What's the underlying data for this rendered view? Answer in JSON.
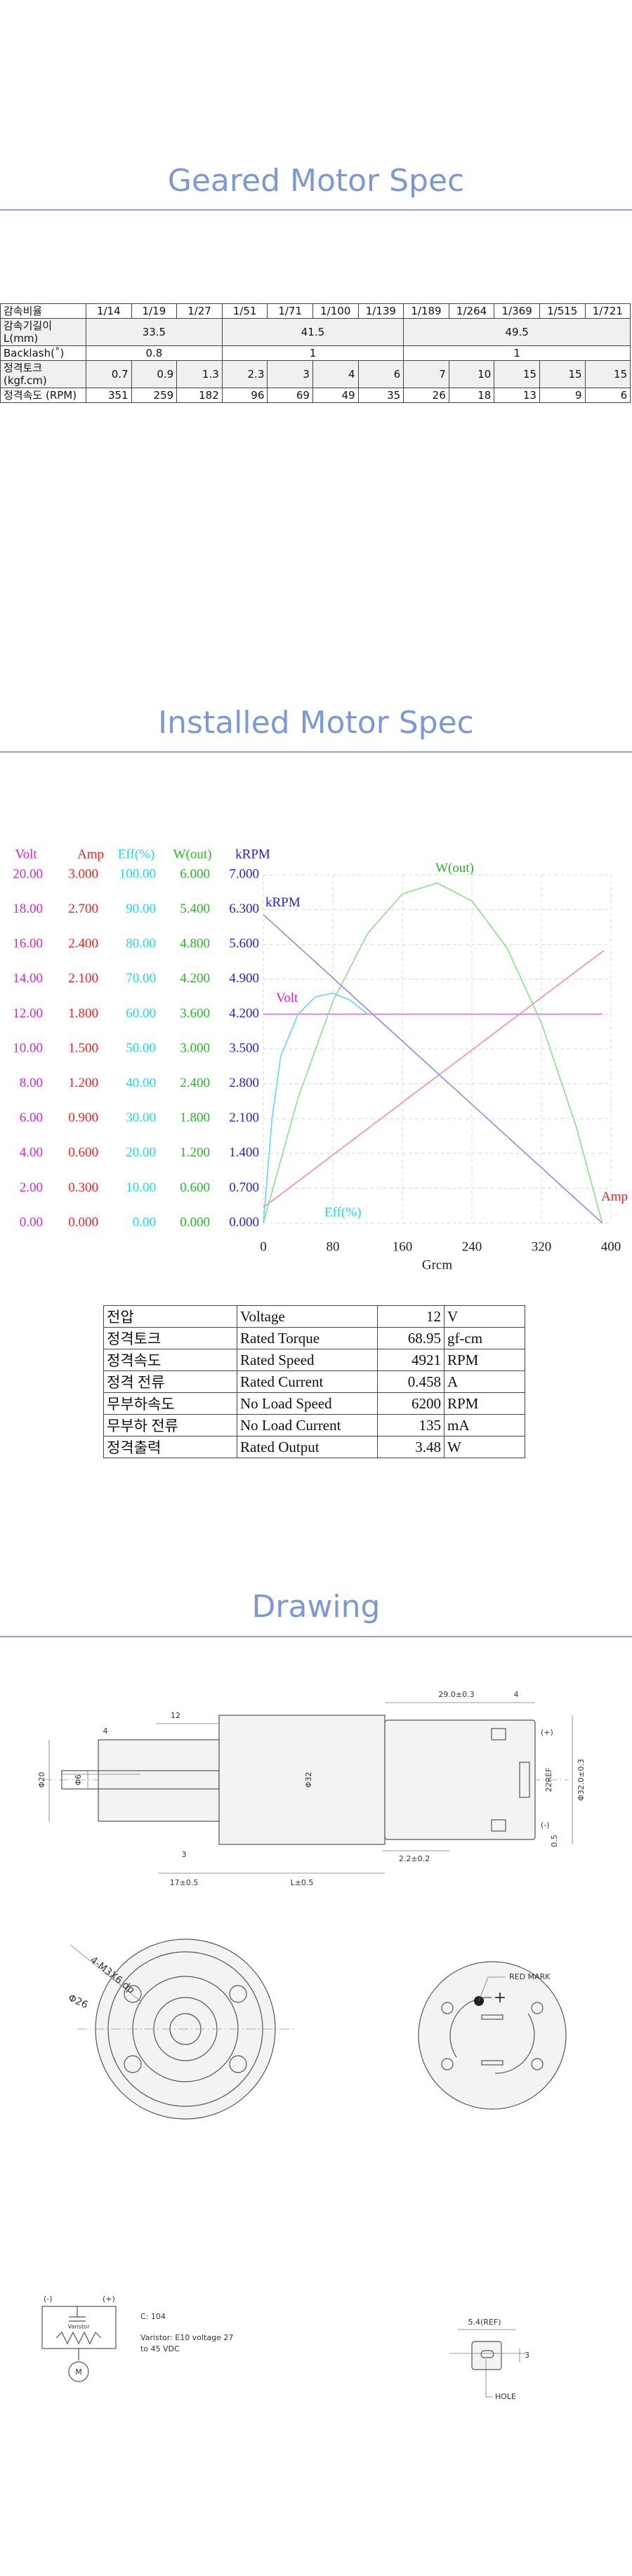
{
  "sections": {
    "geared_title": "Geared Motor Spec",
    "installed_title": "Installed Motor Spec",
    "drawing_title": "Drawing"
  },
  "gear_table": {
    "header_label": "감속비율",
    "ratios": [
      "1/14",
      "1/19",
      "1/27",
      "1/51",
      "1/71",
      "1/100",
      "1/139",
      "1/189",
      "1/264",
      "1/369",
      "1/515",
      "1/721"
    ],
    "rows": [
      {
        "label": "감속기길이 L(mm)",
        "values": [
          33.5,
          41.5,
          49.5
        ]
      },
      {
        "label": "Backlash(˚)",
        "values": [
          0.8,
          1,
          1
        ]
      },
      {
        "label": "정격토크 (kgf.cm)",
        "values": [
          0.7,
          0.9,
          1.3,
          2.3,
          3,
          4,
          6,
          7,
          10,
          15,
          15,
          15
        ]
      },
      {
        "label": "정격속도 (RPM)",
        "values": [
          351,
          259,
          182,
          96,
          69,
          49,
          35,
          26,
          18,
          13,
          9,
          6
        ]
      }
    ]
  },
  "chart_data": {
    "type": "line",
    "x_label": "Grcm",
    "xlim": [
      0,
      400
    ],
    "xticks": [
      0,
      80,
      160,
      240,
      320,
      400
    ],
    "grid": true,
    "y_axes": [
      {
        "label": "Volt",
        "color": "#e020e0",
        "ylim": [
          0,
          20
        ],
        "yticks": [
          {
            "value": 0,
            "label": "0.00"
          },
          {
            "value": 2,
            "label": "2.00"
          },
          {
            "value": 4,
            "label": "4.00"
          },
          {
            "value": 6,
            "label": "6.00"
          },
          {
            "value": 8,
            "label": "8.00"
          },
          {
            "value": 10,
            "label": "10.00"
          },
          {
            "value": 12,
            "label": "12.00"
          },
          {
            "value": 14,
            "label": "14.00"
          },
          {
            "value": 16,
            "label": "16.00"
          },
          {
            "value": 18,
            "label": "18.00"
          },
          {
            "value": 20,
            "label": "20.00"
          }
        ]
      },
      {
        "label": "Amp",
        "color": "#ff2020",
        "ylim": [
          0,
          3
        ],
        "yticks": [
          {
            "value": 0,
            "label": "0.000"
          },
          {
            "value": 0.3,
            "label": "0.300"
          },
          {
            "value": 0.6,
            "label": "0.600"
          },
          {
            "value": 0.9,
            "label": "0.900"
          },
          {
            "value": 1.2,
            "label": "1.200"
          },
          {
            "value": 1.5,
            "label": "1.500"
          },
          {
            "value": 1.8,
            "label": "1.800"
          },
          {
            "value": 2.1,
            "label": "2.100"
          },
          {
            "value": 2.4,
            "label": "2.400"
          },
          {
            "value": 2.7,
            "label": "2.700"
          },
          {
            "value": 3,
            "label": "3.000"
          }
        ]
      },
      {
        "label": "Eff(%)",
        "color": "#20d8e8",
        "ylim": [
          0,
          100
        ],
        "yticks": [
          {
            "value": 0,
            "label": "0.00"
          },
          {
            "value": 10,
            "label": "10.00"
          },
          {
            "value": 20,
            "label": "20.00"
          },
          {
            "value": 30,
            "label": "30.00"
          },
          {
            "value": 40,
            "label": "40.00"
          },
          {
            "value": 50,
            "label": "50.00"
          },
          {
            "value": 60,
            "label": "60.00"
          },
          {
            "value": 70,
            "label": "70.00"
          },
          {
            "value": 80,
            "label": "80.00"
          },
          {
            "value": 90,
            "label": "90.00"
          },
          {
            "value": 100,
            "label": "100.00"
          }
        ]
      },
      {
        "label": "W(out)",
        "color": "#20c020",
        "ylim": [
          0,
          6
        ],
        "yticks": [
          {
            "value": 0,
            "label": "0.000"
          },
          {
            "value": 0.6,
            "label": "0.600"
          },
          {
            "value": 1.2,
            "label": "1.200"
          },
          {
            "value": 1.8,
            "label": "1.800"
          },
          {
            "value": 2.4,
            "label": "2.400"
          },
          {
            "value": 3,
            "label": "3.000"
          },
          {
            "value": 3.6,
            "label": "3.600"
          },
          {
            "value": 4.2,
            "label": "4.200"
          },
          {
            "value": 4.8,
            "label": "4.800"
          },
          {
            "value": 5.4,
            "label": "5.400"
          },
          {
            "value": 6,
            "label": "6.000"
          }
        ]
      },
      {
        "label": "kRPM",
        "color": "#2020ff",
        "ylim": [
          0,
          7
        ],
        "yticks": [
          {
            "value": 0,
            "label": "0.000"
          },
          {
            "value": 0.7,
            "label": "0.700"
          },
          {
            "value": 1.4,
            "label": "1.400"
          },
          {
            "value": 2.1,
            "label": "2.100"
          },
          {
            "value": 2.8,
            "label": "2.800"
          },
          {
            "value": 3.5,
            "label": "3.500"
          },
          {
            "value": 4.2,
            "label": "4.200"
          },
          {
            "value": 4.9,
            "label": "4.900"
          },
          {
            "value": 5.6,
            "label": "5.600"
          },
          {
            "value": 6.3,
            "label": "6.300"
          },
          {
            "value": 7,
            "label": "7.000"
          }
        ]
      }
    ],
    "series": [
      {
        "name": "Volt",
        "color": "#e070e0",
        "axis": 0,
        "x": [
          0,
          390
        ],
        "values": [
          12,
          12
        ]
      },
      {
        "name": "Amp",
        "color": "#ff8a9a",
        "axis": 1,
        "x": [
          0,
          392
        ],
        "values": [
          0.135,
          2.35
        ]
      },
      {
        "name": "Eff(%)",
        "color": "#60d8f0",
        "axis": 2,
        "x": [
          0,
          10,
          20,
          40,
          60,
          80,
          100,
          120
        ],
        "values": [
          0,
          30,
          48,
          60,
          65,
          66,
          64,
          60
        ]
      },
      {
        "name": "W(out)",
        "color": "#88e088",
        "axis": 3,
        "x": [
          0,
          40,
          80,
          120,
          160,
          200,
          240,
          280,
          320,
          360,
          390
        ],
        "values": [
          0,
          2.16,
          3.82,
          4.99,
          5.67,
          5.86,
          5.55,
          4.75,
          3.45,
          1.66,
          0
        ]
      },
      {
        "name": "kRPM",
        "color": "#8a8aff",
        "axis": 4,
        "x": [
          0,
          390
        ],
        "values": [
          6.2,
          0
        ]
      }
    ]
  },
  "rated_table": {
    "rows": [
      [
        "전압",
        "Voltage",
        12,
        "V"
      ],
      [
        "정격토크",
        "Rated Torque",
        68.95,
        "gf-cm"
      ],
      [
        "정격속도",
        "Rated Speed",
        4921,
        "RPM"
      ],
      [
        "정격 전류",
        "Rated Current",
        0.458,
        "A"
      ],
      [
        "무부하속도",
        "No Load Speed",
        6200,
        "RPM"
      ],
      [
        "무부하 전류",
        "No Load Current",
        135,
        "mA"
      ],
      [
        "정격출력",
        "Rated Output",
        3.48,
        "W"
      ]
    ]
  },
  "drawing": {
    "side_view": [
      "12",
      "Φ6",
      "4",
      "Φ20",
      "Φ32",
      "29.0±0.3",
      "4",
      "(+)",
      "(-)",
      "2.2±0.2",
      "3",
      "17±0.5",
      "L±0.5",
      "Φ32.0±0.3",
      "22REF",
      "0.5"
    ],
    "front_view": [
      "4-M3X6 dp",
      "Φ26"
    ],
    "rear_view": [
      "RED MARK",
      "+"
    ],
    "circuit": [
      "(-)",
      "(+)",
      "C: 104",
      "Varistor: E10 voltage 27",
      "to 45 VDC",
      "Varistor",
      "M"
    ],
    "terminal": [
      "5.4(REF)",
      "3",
      "HOLE"
    ]
  }
}
